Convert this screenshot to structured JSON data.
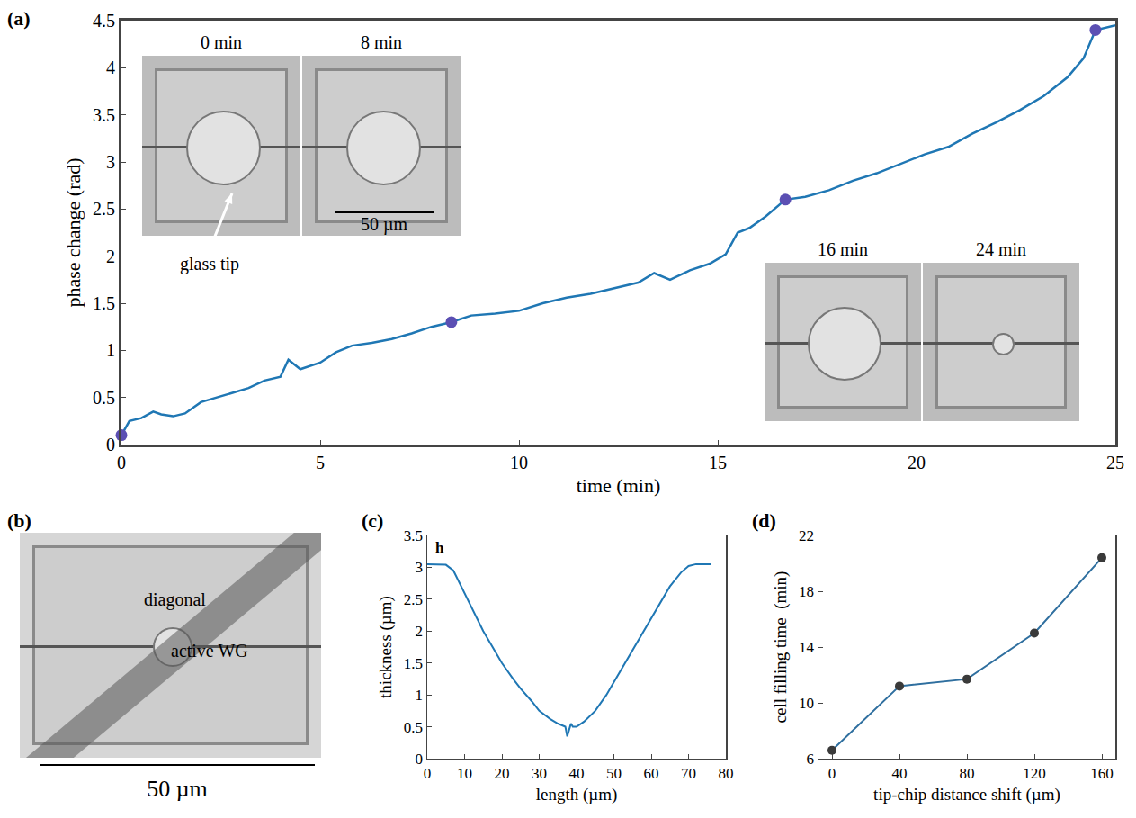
{
  "chart_data": [
    {
      "panel": "(a)",
      "type": "line",
      "x_label": "time (min)",
      "y_label": "phase change (rad)",
      "x": [
        0,
        0.2,
        0.5,
        0.8,
        1.0,
        1.3,
        1.6,
        2.0,
        2.4,
        2.8,
        3.2,
        3.6,
        4.0,
        4.2,
        4.5,
        5.0,
        5.4,
        5.8,
        6.3,
        6.8,
        7.3,
        7.8,
        8.3,
        8.8,
        9.4,
        10.0,
        10.6,
        11.2,
        11.8,
        12.4,
        13.0,
        13.4,
        13.8,
        14.3,
        14.8,
        15.2,
        15.5,
        15.8,
        16.2,
        16.7,
        17.2,
        17.8,
        18.4,
        19.0,
        19.6,
        20.2,
        20.8,
        21.4,
        22.0,
        22.6,
        23.2,
        23.8,
        24.2,
        24.5,
        25.0
      ],
      "values": [
        0.1,
        0.25,
        0.28,
        0.35,
        0.32,
        0.3,
        0.33,
        0.45,
        0.5,
        0.55,
        0.6,
        0.68,
        0.72,
        0.9,
        0.8,
        0.87,
        0.98,
        1.05,
        1.08,
        1.12,
        1.18,
        1.25,
        1.3,
        1.37,
        1.39,
        1.42,
        1.5,
        1.56,
        1.6,
        1.66,
        1.72,
        1.82,
        1.75,
        1.85,
        1.92,
        2.02,
        2.25,
        2.3,
        2.42,
        2.6,
        2.63,
        2.7,
        2.8,
        2.88,
        2.98,
        3.08,
        3.16,
        3.3,
        3.42,
        3.55,
        3.7,
        3.9,
        4.1,
        4.4,
        4.45
      ],
      "color": "#1f77b4",
      "highlighted_points": {
        "x": [
          0,
          8.3,
          16.7,
          24.5
        ],
        "values": [
          0.1,
          1.3,
          2.6,
          4.4
        ],
        "color": "#5b4fb3"
      },
      "xlim": [
        0,
        25
      ],
      "xticks": [
        0,
        5,
        10,
        15,
        20,
        25
      ],
      "ylim": [
        0,
        4.5
      ],
      "yticks": [
        0,
        0.5,
        1,
        1.5,
        2,
        2.5,
        3,
        3.5,
        4,
        4.5
      ]
    },
    {
      "panel": "(c)",
      "type": "line",
      "annotation": "h",
      "x_label": "length (µm)",
      "y_label": "thickness (µm)",
      "x": [
        0,
        3,
        5,
        7,
        10,
        13,
        15,
        18,
        20,
        23,
        25,
        28,
        30,
        33,
        35,
        37,
        37.5,
        38,
        38.5,
        39,
        40,
        42,
        45,
        48,
        50,
        53,
        55,
        58,
        60,
        63,
        65,
        68,
        70,
        72,
        76
      ],
      "values": [
        3.05,
        3.05,
        3.04,
        2.95,
        2.6,
        2.25,
        2.0,
        1.7,
        1.5,
        1.25,
        1.1,
        0.9,
        0.75,
        0.62,
        0.55,
        0.5,
        0.35,
        0.45,
        0.55,
        0.5,
        0.5,
        0.58,
        0.75,
        1.0,
        1.2,
        1.5,
        1.7,
        2.0,
        2.2,
        2.5,
        2.7,
        2.92,
        3.02,
        3.05,
        3.05
      ],
      "color": "#1f77b4",
      "xlim": [
        0,
        80
      ],
      "xticks": [
        0,
        10,
        20,
        30,
        40,
        50,
        60,
        70,
        80
      ],
      "ylim": [
        0,
        3.5
      ],
      "yticks": [
        0,
        0.5,
        1,
        1.5,
        2,
        2.5,
        3,
        3.5
      ]
    },
    {
      "panel": "(d)",
      "type": "line",
      "marker": "circle",
      "x_label": "tip-chip distance shift (µm)",
      "y_label": "cell filling time  (min)",
      "x": [
        0,
        40,
        80,
        120,
        160
      ],
      "values": [
        6.6,
        11.2,
        11.7,
        15,
        20.4
      ],
      "color": "#2f6f9f",
      "xlim": [
        -8,
        168
      ],
      "xticks": [
        0,
        40,
        80,
        120,
        160
      ],
      "ylim": [
        6,
        22
      ],
      "yticks": [
        6,
        10,
        14,
        18,
        22
      ]
    }
  ],
  "insets": [
    {
      "panel": "(a)",
      "frames": [
        "0 min",
        "8 min"
      ],
      "pointer": "glass tip",
      "scale_bar": "50 µm"
    },
    {
      "panel": "(a)",
      "frames": [
        "16 min",
        "24 min"
      ]
    }
  ],
  "image_panel": {
    "panel": "(b)",
    "labels": [
      "diagonal",
      "active WG"
    ],
    "scale_bar": "50 µm"
  }
}
